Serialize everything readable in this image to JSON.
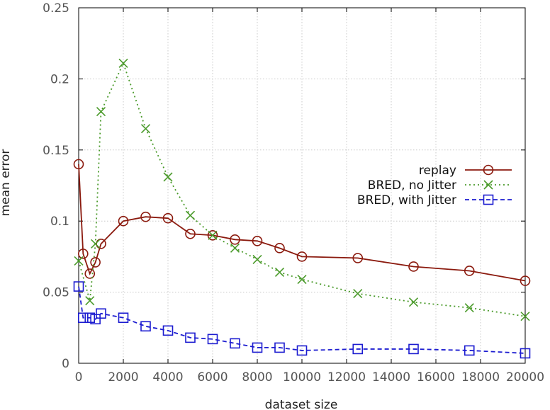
{
  "chart_data": {
    "type": "line",
    "title": "",
    "xlabel": "dataset size",
    "ylabel": "mean error",
    "xlim": [
      0,
      20000
    ],
    "ylim": [
      0,
      0.25
    ],
    "x_ticks": [
      0,
      2000,
      4000,
      6000,
      8000,
      10000,
      12000,
      14000,
      16000,
      18000,
      20000
    ],
    "y_ticks": [
      0,
      0.05,
      0.1,
      0.15,
      0.2,
      0.25
    ],
    "x_tick_labels": [
      "0",
      "2000",
      "4000",
      "6000",
      "8000",
      "10000",
      "12000",
      "14000",
      "16000",
      "18000",
      "20000"
    ],
    "y_tick_labels": [
      "0",
      "0.05",
      "0.1",
      "0.15",
      "0.2",
      "0.25"
    ],
    "grid": true,
    "legend_position": "right",
    "series": [
      {
        "name": "replay",
        "color": "#8b1a0e",
        "line": "solid",
        "marker": "circle",
        "x": [
          0,
          200,
          500,
          750,
          1000,
          2000,
          3000,
          4000,
          5000,
          6000,
          7000,
          8000,
          9000,
          10000,
          12500,
          15000,
          17500,
          20000
        ],
        "y": [
          0.14,
          0.077,
          0.063,
          0.071,
          0.084,
          0.1,
          0.103,
          0.102,
          0.091,
          0.09,
          0.087,
          0.086,
          0.081,
          0.075,
          0.074,
          0.068,
          0.065,
          0.058
        ]
      },
      {
        "name": "BRED, no Jitter",
        "color": "#4a9a2a",
        "line": "dotted",
        "marker": "x",
        "x": [
          0,
          500,
          750,
          1000,
          2000,
          3000,
          4000,
          5000,
          6000,
          7000,
          8000,
          9000,
          10000,
          12500,
          15000,
          17500,
          20000
        ],
        "y": [
          0.072,
          0.044,
          0.084,
          0.177,
          0.211,
          0.165,
          0.131,
          0.104,
          0.09,
          0.081,
          0.073,
          0.064,
          0.059,
          0.049,
          0.043,
          0.039,
          0.033
        ]
      },
      {
        "name": "BRED, with Jitter",
        "color": "#1c1cd0",
        "line": "dashed",
        "marker": "square",
        "x": [
          0,
          200,
          500,
          750,
          1000,
          2000,
          3000,
          4000,
          5000,
          6000,
          7000,
          8000,
          9000,
          10000,
          12500,
          15000,
          17500,
          20000
        ],
        "y": [
          0.054,
          0.032,
          0.032,
          0.031,
          0.035,
          0.032,
          0.026,
          0.023,
          0.018,
          0.017,
          0.014,
          0.011,
          0.011,
          0.009,
          0.01,
          0.01,
          0.009,
          0.007
        ]
      }
    ]
  }
}
